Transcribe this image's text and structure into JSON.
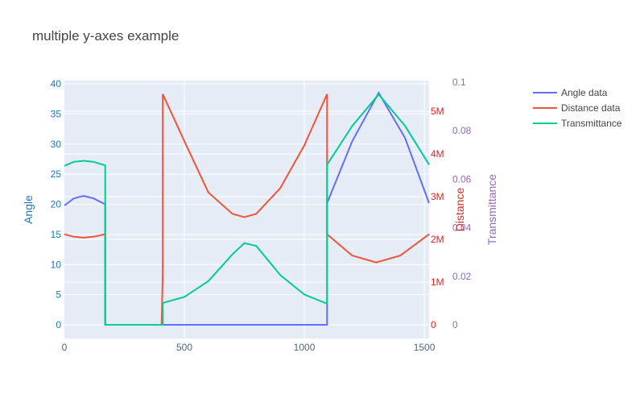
{
  "chart_data": {
    "type": "line",
    "title": "multiple y-axes example",
    "xlabel": "",
    "xlim": [
      0,
      1520
    ],
    "x_ticks": [
      "0",
      "500",
      "1000",
      "1500"
    ],
    "x_tick_values": [
      0,
      500,
      1000,
      1500
    ],
    "axes": {
      "y": {
        "title": "Angle",
        "color": "#1f77b4",
        "range": [
          -2,
          40.5
        ],
        "ticks": [
          "0",
          "5",
          "10",
          "15",
          "20",
          "25",
          "30",
          "35",
          "40"
        ],
        "tick_values": [
          0,
          5,
          10,
          15,
          20,
          25,
          30,
          35,
          40
        ]
      },
      "y2": {
        "title": "Distance",
        "color": "#d62728",
        "range": [
          0,
          5.6
        ],
        "unit_multiplier": 1000000,
        "ticks": [
          "0",
          "1M",
          "2M",
          "3M",
          "4M",
          "5M"
        ],
        "tick_values": [
          0,
          1,
          2,
          3,
          4,
          5
        ]
      },
      "y3": {
        "title": "Transmittance",
        "color": "#9467bd",
        "range": [
          0,
          0.1
        ],
        "ticks": [
          "0",
          "0.02",
          "0.04",
          "0.06",
          "0.08",
          "0.1"
        ],
        "tick_values": [
          0,
          0.02,
          0.04,
          0.06,
          0.08,
          0.1
        ]
      }
    },
    "series": [
      {
        "name": "Angle data",
        "axis": "y",
        "color": "#636efa",
        "x": [
          0,
          40,
          80,
          120,
          170,
          170,
          410,
          820,
          1095,
          1095,
          1200,
          1310,
          1420,
          1520
        ],
        "y": [
          19.8,
          21.0,
          21.4,
          21.0,
          20.0,
          0,
          0,
          0,
          0,
          20.2,
          30.5,
          38.5,
          31.0,
          20.2
        ]
      },
      {
        "name": "Distance data",
        "axis": "y2",
        "color": "#EF553B",
        "x": [
          0,
          40,
          80,
          120,
          170,
          170,
          405,
          410,
          410,
          500,
          600,
          700,
          750,
          800,
          900,
          1000,
          1095,
          1095,
          1200,
          1300,
          1400,
          1520
        ],
        "y": [
          2.12,
          2.06,
          2.04,
          2.06,
          2.12,
          0,
          0,
          1.2,
          5.4,
          4.3,
          3.1,
          2.6,
          2.52,
          2.6,
          3.2,
          4.2,
          5.4,
          2.12,
          1.62,
          1.46,
          1.62,
          2.12
        ]
      },
      {
        "name": "Transmittance",
        "axis": "y3",
        "color": "#00cc96",
        "x": [
          0,
          40,
          80,
          120,
          170,
          170,
          410,
          410,
          500,
          600,
          700,
          750,
          800,
          900,
          1000,
          1095,
          1095,
          1200,
          1310,
          1420,
          1520
        ],
        "y": [
          0.0655,
          0.0672,
          0.0676,
          0.0672,
          0.0657,
          0,
          0,
          0.009,
          0.0115,
          0.018,
          0.029,
          0.0337,
          0.0325,
          0.0205,
          0.0125,
          0.0087,
          0.066,
          0.082,
          0.095,
          0.082,
          0.066
        ]
      }
    ],
    "legend": "top-right",
    "grid": true
  }
}
